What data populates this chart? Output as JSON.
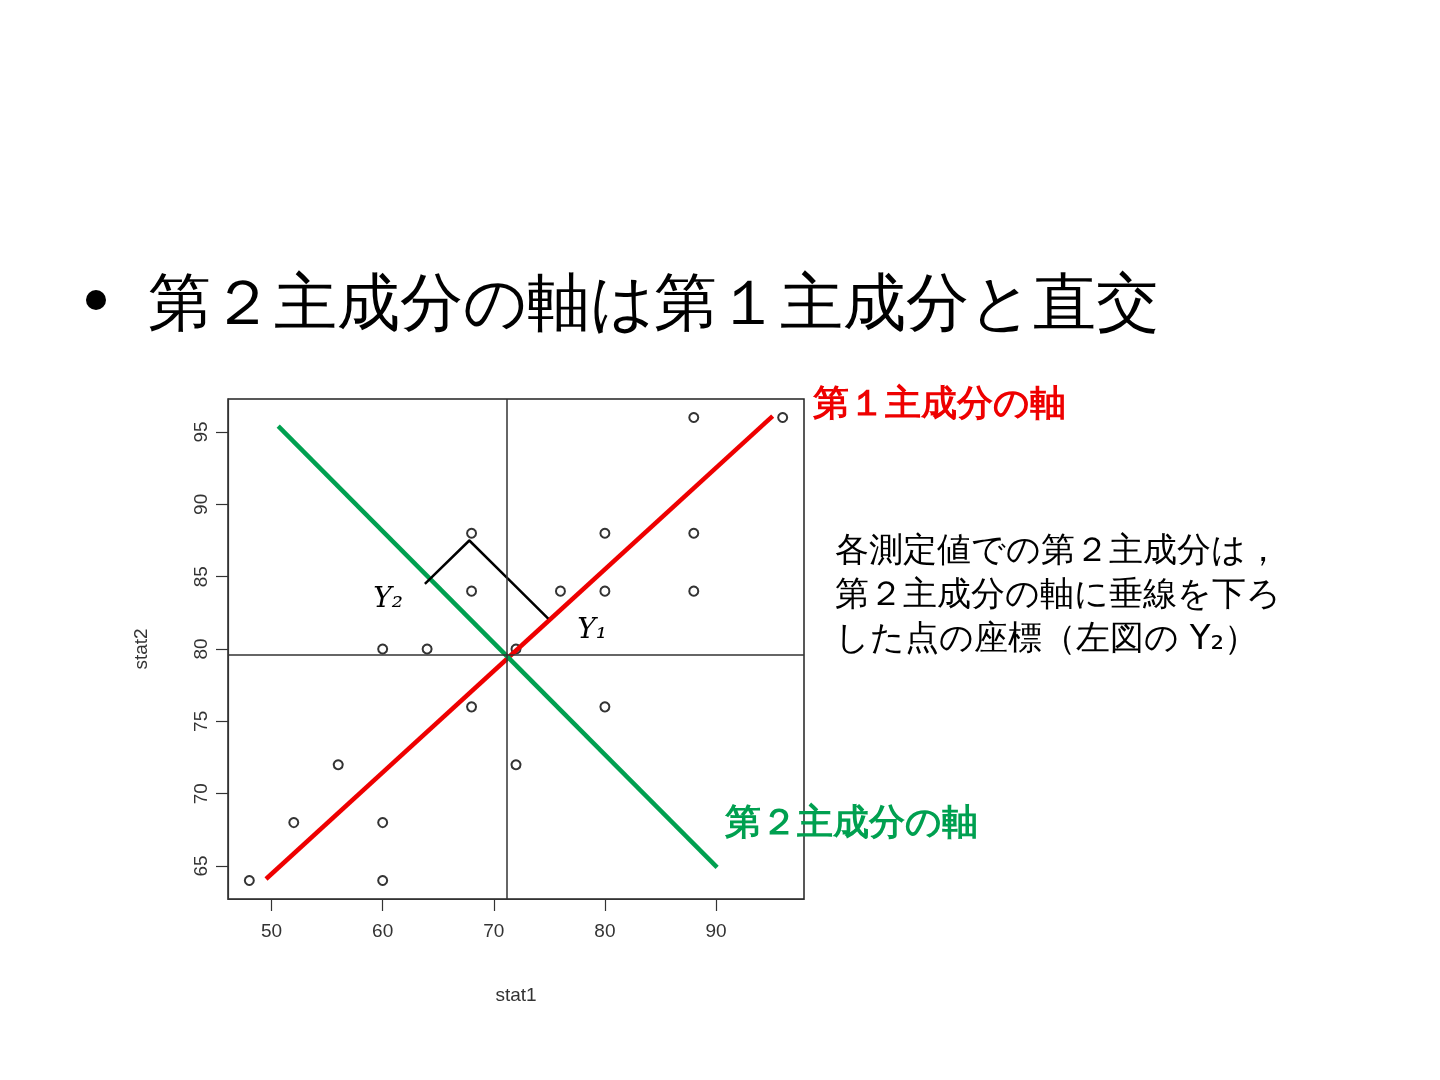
{
  "chart_data": {
    "type": "scatter",
    "title": "第２主成分の軸は第１主成分と直交",
    "xlabel": "stat1",
    "ylabel": "stat2",
    "xlim": [
      46.08,
      97.92
    ],
    "ylim": [
      62.72,
      97.28
    ],
    "xticks": [
      50,
      60,
      70,
      80,
      90
    ],
    "yticks": [
      65,
      70,
      75,
      80,
      85,
      90,
      95
    ],
    "marker": "circle",
    "series": [
      {
        "color": "#000000",
        "x": [
          48,
          52,
          56,
          60,
          60,
          60,
          64,
          68,
          68,
          68,
          72,
          72,
          76,
          80,
          80,
          80,
          88,
          88,
          88,
          96
        ],
        "values": [
          64,
          68,
          72,
          80,
          68,
          64,
          80,
          88,
          84,
          76,
          80,
          72,
          84,
          88,
          84,
          76,
          96,
          88,
          84,
          96
        ]
      },
      {
        "type": "line",
        "name": "第１主成分の軸",
        "color": "#ee0000",
        "marker": "none",
        "x": [
          49.5,
          95.1
        ],
        "values": [
          64.1,
          96.1
        ]
      },
      {
        "type": "line",
        "name": "第２主成分の軸",
        "color": "#00a050",
        "marker": "none",
        "x": [
          50.6,
          90.1
        ],
        "values": [
          95.4,
          64.9
        ]
      },
      {
        "type": "line",
        "color": "#000000",
        "marker": "none",
        "x": [
          63.8,
          67.8,
          74.9
        ],
        "values": [
          84.5,
          87.5,
          82.1
        ]
      }
    ],
    "ref_lines": [
      {
        "axis": "x",
        "value": 71.2,
        "color": "#333333"
      },
      {
        "axis": "y",
        "value": 79.6,
        "color": "#333333"
      }
    ],
    "annotations": [
      "Y₂",
      "Y₁",
      "各測定値での第２主成分は，第２主成分の軸に垂線を下ろした点の座標（左図の Y₂）"
    ]
  }
}
